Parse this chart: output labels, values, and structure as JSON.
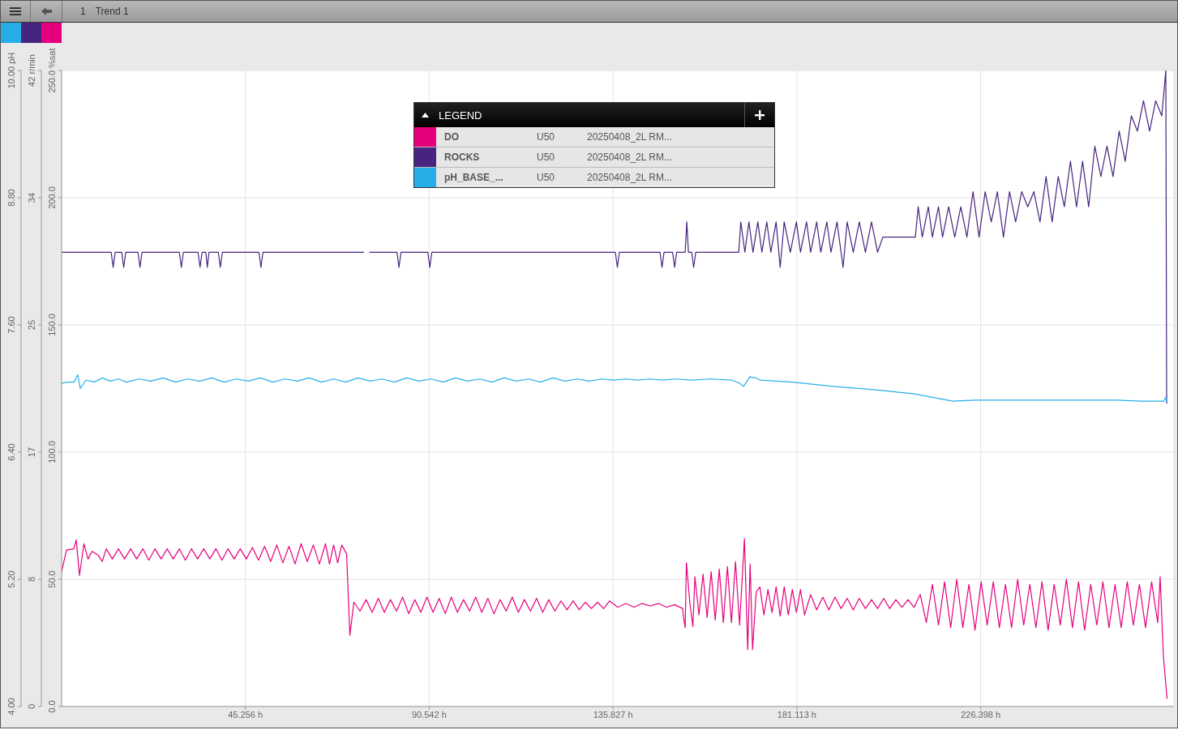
{
  "chart_data": {
    "type": "line",
    "title": "Trend 1",
    "subtitle": "1",
    "legend_title": "LEGEND",
    "legend": "top",
    "grid": true,
    "annotations": [
      "U50",
      "20250408_2L RM...",
      "U50",
      "20250408_2L RM...",
      "U50",
      "20250408_2L RM..."
    ],
    "xlim": [
      0,
      274
    ],
    "xticks": [
      {
        "value": 45.256,
        "label": "45.256 h"
      },
      {
        "value": 90.542,
        "label": "90.542 h"
      },
      {
        "value": 135.827,
        "label": "135.827 h"
      },
      {
        "value": 181.113,
        "label": "181.113 h"
      },
      {
        "value": 226.398,
        "label": "226.398 h"
      }
    ],
    "ylim": [
      0,
      250
    ],
    "yticks": [
      {
        "value": 0,
        "label": "0.0"
      },
      {
        "value": 50,
        "label": "50.0"
      },
      {
        "value": 100,
        "label": "100.0"
      },
      {
        "value": 150,
        "label": "150.0"
      },
      {
        "value": 200,
        "label": "200.0"
      },
      {
        "value": 250,
        "label": "250.0 %sat"
      }
    ],
    "y2lim": [
      0,
      42
    ],
    "y2ticks": [
      0,
      {
        "value": 8.4,
        "label": "8"
      },
      {
        "value": 16.8,
        "label": "17"
      },
      {
        "value": 25.2,
        "label": "25"
      },
      {
        "value": 33.6,
        "label": "34"
      },
      {
        "value": 42,
        "label": "42 r/min"
      }
    ],
    "y3lim": [
      4,
      10
    ],
    "y3ticks": [
      {
        "value": 4,
        "label": "4.00"
      },
      {
        "value": 5.2,
        "label": "5.20"
      },
      {
        "value": 6.4,
        "label": "6.40"
      },
      {
        "value": 7.6,
        "label": "7.60"
      },
      {
        "value": 8.8,
        "label": "8.80"
      },
      {
        "value": 10,
        "label": "10.00 pH"
      }
    ],
    "series": [
      {
        "name": "DO",
        "color": "#e6007e",
        "axis": "y",
        "x": [
          0,
          1.2,
          3,
          3.6,
          4.4,
          5.5,
          6.5,
          7.5,
          9,
          10,
          11,
          12.5,
          14,
          15.5,
          17,
          18.5,
          20,
          21.5,
          23,
          24.5,
          26,
          27.5,
          29,
          30.5,
          32,
          33.5,
          35,
          36.5,
          38,
          39.5,
          41,
          42.5,
          44,
          45.5,
          47,
          48.5,
          50,
          51.5,
          53,
          54.5,
          56,
          57.5,
          59,
          60.5,
          62,
          63.5,
          65,
          66,
          67,
          68,
          69,
          70.2,
          71,
          72,
          73.5,
          75,
          76.5,
          78,
          79.5,
          81,
          82.5,
          84,
          85.5,
          87,
          88.5,
          90,
          91.5,
          93,
          94.5,
          96,
          97.5,
          99,
          100.5,
          102,
          103.5,
          105,
          106.5,
          108,
          109.5,
          111,
          112.5,
          114,
          115.5,
          117,
          118.5,
          120,
          121.5,
          123,
          124.5,
          126,
          127.5,
          129,
          130.5,
          132,
          133.5,
          135,
          137,
          139,
          141,
          143,
          145,
          147,
          149,
          151,
          153,
          153.2,
          153.6,
          153.9,
          154.8,
          155.5,
          156,
          157,
          158,
          159,
          160,
          161,
          162,
          163,
          164,
          165,
          166,
          167,
          168.2,
          169,
          169.6,
          170.2,
          171.1,
          172,
          173,
          174,
          175,
          176,
          177,
          178,
          179,
          180,
          181,
          182,
          183,
          184.5,
          186,
          187.5,
          189,
          190.5,
          192,
          193.5,
          195,
          196.5,
          198,
          199.5,
          201,
          202.5,
          204,
          205.5,
          207,
          208.5,
          210,
          211.5,
          213,
          214.5,
          216,
          217.5,
          219,
          220.5,
          222,
          223.5,
          225,
          226.5,
          228,
          229.5,
          231,
          232.5,
          234,
          235.5,
          237,
          238.5,
          240,
          241.5,
          243,
          244.5,
          246,
          247.5,
          249,
          250.5,
          252,
          253.5,
          255,
          256.5,
          258,
          259.5,
          261,
          262.5,
          264,
          265.5,
          267,
          268.5,
          270,
          270.6,
          271.4,
          272.3
        ],
        "values": [
          53,
          61.5,
          62,
          65.5,
          51.5,
          64,
          58,
          61,
          59.5,
          57,
          62,
          58,
          62,
          58,
          62,
          58,
          62,
          57.5,
          62,
          58,
          62,
          58,
          62,
          57.5,
          62,
          58,
          62,
          58,
          62,
          57.5,
          62,
          58,
          62,
          58,
          62.5,
          57.5,
          63,
          57,
          63.5,
          56.5,
          63,
          56,
          64,
          57,
          63.5,
          56,
          64,
          56,
          63.5,
          56.5,
          63.5,
          60,
          28,
          41,
          37.5,
          42,
          37,
          42.5,
          37,
          42,
          37.5,
          43,
          36.5,
          42,
          37,
          43,
          37,
          42.5,
          36.5,
          43,
          37,
          42,
          37.5,
          43,
          37,
          42.5,
          36.5,
          42,
          37.5,
          43,
          37,
          42,
          37.5,
          42.5,
          37,
          42,
          37.5,
          41.5,
          38,
          41.5,
          38,
          41,
          38.5,
          41,
          38.5,
          41.5,
          39,
          40.5,
          39,
          40.5,
          39.5,
          40.5,
          39,
          40,
          38.5,
          35,
          31,
          56.5,
          40,
          31.5,
          51,
          36,
          52,
          35,
          53,
          34,
          54,
          33,
          55,
          33,
          57,
          32,
          66,
          22.4,
          56,
          22.4,
          45,
          47,
          36,
          46,
          37,
          47,
          35.5,
          47,
          36,
          46,
          37,
          46,
          36,
          44,
          38,
          43,
          38,
          43,
          38.5,
          42.5,
          38,
          42.5,
          38.5,
          42,
          38.5,
          42.5,
          38.5,
          42,
          39,
          42,
          39,
          44,
          33,
          48,
          32,
          49,
          31,
          50,
          31,
          48,
          30,
          49,
          32,
          49,
          31,
          48,
          31,
          50,
          32,
          48,
          31,
          49,
          30,
          48,
          32,
          50,
          31,
          49,
          30,
          48,
          32,
          49,
          31,
          48,
          31,
          49,
          32,
          48,
          31,
          49,
          33,
          51,
          20,
          3
        ]
      },
      {
        "name": "ROCKS",
        "color": "#47247f",
        "axis": "y2",
        "x": [
          0,
          12.2,
          12.7,
          13.2,
          14.8,
          15.3,
          15.8,
          18.8,
          19.3,
          19.8,
          29,
          29.5,
          30,
          33.6,
          34.1,
          34.6,
          35.5,
          35.9,
          36.3,
          38.6,
          39.1,
          39.6,
          48.6,
          49.1,
          49.6,
          74.5,
          74.8,
          75.8,
          82.6,
          83.1,
          83.6,
          90.2,
          90.7,
          91.2,
          136.4,
          136.9,
          137.4,
          147.4,
          147.9,
          148.4,
          150.5,
          151,
          151.5,
          153.6,
          154,
          154.4,
          155.2,
          155.7,
          156.2,
          166.8,
          167.3,
          168.3,
          169.3,
          170.3,
          171.5,
          172.5,
          173.7,
          174.7,
          176,
          177,
          178,
          179.5,
          181,
          182,
          183.5,
          184.5,
          186,
          187,
          188.5,
          189.5,
          191,
          192.5,
          193.5,
          195,
          196.5,
          198,
          199.5,
          201,
          202.3,
          210.3,
          211,
          212,
          213.5,
          214.5,
          216,
          217,
          218.5,
          220,
          221.5,
          223,
          224.5,
          226,
          227.5,
          229,
          230.5,
          232,
          233.5,
          235,
          236.5,
          238,
          239.5,
          241,
          242.5,
          244,
          245.5,
          247,
          248.5,
          250,
          251.5,
          253,
          254.5,
          256,
          257.5,
          259,
          260.5,
          262,
          263.5,
          265,
          266.5,
          268,
          269.5,
          271,
          272,
          272.2
        ],
        "values": [
          30,
          30,
          29,
          30,
          30,
          29,
          30,
          30,
          29,
          30,
          30,
          29,
          30,
          30,
          29,
          30,
          30,
          29,
          30,
          30,
          29,
          30,
          30,
          29,
          30,
          30,
          null,
          30,
          30,
          29,
          30,
          30,
          29,
          30,
          30,
          29,
          30,
          30,
          29,
          30,
          30,
          29,
          30,
          30,
          32,
          30,
          30,
          29,
          30,
          30,
          32,
          30,
          32,
          30,
          32,
          30,
          32,
          30,
          32,
          29,
          32,
          30,
          32,
          30,
          32,
          30,
          32,
          30,
          32,
          30,
          32,
          29,
          32,
          30,
          32,
          30,
          32,
          30,
          31,
          31,
          33,
          31,
          33,
          31,
          33,
          31,
          33,
          31,
          33,
          31,
          34,
          31,
          34,
          32,
          34,
          31,
          34,
          32,
          34,
          33,
          34,
          32,
          35,
          32,
          35,
          33,
          36,
          33,
          36,
          33,
          37,
          35,
          37,
          35,
          38,
          36,
          39,
          38,
          40,
          38,
          40,
          39,
          42,
          20
        ]
      },
      {
        "name": "pH_BASE_...",
        "color": "#27aee8",
        "axis": "y3",
        "x": [
          0,
          1.5,
          3,
          4,
          4.6,
          6,
          8,
          10,
          12,
          14,
          16,
          19,
          22,
          25,
          28,
          31,
          34,
          37,
          40,
          43,
          46,
          49,
          52,
          55,
          58,
          61,
          64,
          67,
          70,
          73,
          76,
          79,
          82,
          85,
          88,
          91,
          94,
          97,
          100,
          103,
          106,
          109,
          112,
          115,
          118,
          121,
          124,
          127,
          130,
          133,
          136,
          139,
          142,
          145,
          148,
          151,
          155,
          160,
          165,
          167,
          168,
          169.5,
          171,
          172,
          180,
          190,
          200,
          210,
          219.5,
          225,
          230,
          240,
          250,
          260,
          266,
          271.5,
          272,
          272.2
        ],
        "values": [
          7.05,
          7.06,
          7.06,
          7.13,
          7.0,
          7.08,
          7.06,
          7.1,
          7.07,
          7.09,
          7.06,
          7.09,
          7.07,
          7.1,
          7.06,
          7.09,
          7.07,
          7.1,
          7.06,
          7.09,
          7.07,
          7.1,
          7.06,
          7.09,
          7.07,
          7.1,
          7.06,
          7.09,
          7.06,
          7.1,
          7.07,
          7.09,
          7.06,
          7.1,
          7.07,
          7.09,
          7.06,
          7.1,
          7.07,
          7.09,
          7.06,
          7.1,
          7.07,
          7.09,
          7.06,
          7.1,
          7.07,
          7.09,
          7.07,
          7.09,
          7.08,
          7.09,
          7.08,
          7.09,
          7.08,
          7.09,
          7.08,
          7.09,
          7.08,
          7.05,
          7.02,
          7.11,
          7.1,
          7.08,
          7.06,
          7.02,
          6.99,
          6.95,
          6.88,
          6.89,
          6.89,
          6.89,
          6.89,
          6.89,
          6.88,
          6.88,
          6.92,
          6.87
        ]
      }
    ]
  }
}
